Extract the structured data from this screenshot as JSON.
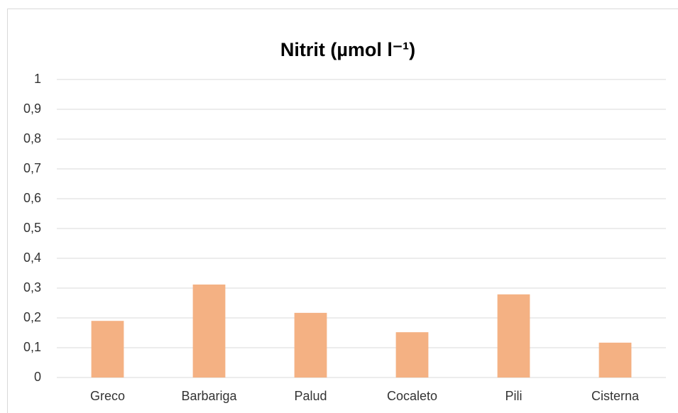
{
  "chart_data": {
    "type": "bar",
    "title": "Nitrit (µmol l⁻¹)",
    "categories": [
      "Greco",
      "Barbariga",
      "Palud",
      "Cocaleto",
      "Pili",
      "Cisterna"
    ],
    "values": [
      0.19,
      0.312,
      0.217,
      0.152,
      0.279,
      0.117
    ],
    "color": "#f4b183",
    "ylim": [
      0,
      1
    ],
    "yticks": [
      0,
      {
        "value": 0.1,
        "label": "0,1"
      },
      {
        "value": 0.2,
        "label": "0,2"
      },
      {
        "value": 0.3,
        "label": "0,3"
      },
      {
        "value": 0.4,
        "label": "0,4"
      },
      {
        "value": 0.5,
        "label": "0,5"
      },
      {
        "value": 0.6,
        "label": "0,6"
      },
      {
        "value": 0.7,
        "label": "0,7"
      },
      {
        "value": 0.8,
        "label": "0,8"
      },
      {
        "value": 0.9,
        "label": "0,9"
      },
      1
    ],
    "grid": true
  }
}
